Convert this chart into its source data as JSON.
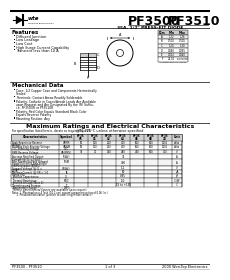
{
  "title1": "PF3500",
  "title2": "PF3510",
  "subtitle": "35A, 1/2\" PRESS-FIT DIODE",
  "bg_color": "#ffffff",
  "features_title": "Features",
  "features": [
    "Diffused Junction",
    "Low Leakage",
    "Low Cost",
    "High Surge Current Capability",
    "Transient less than 10 A"
  ],
  "mech_title": "Mechanical Data",
  "mech_items": [
    "Case: 1/2 Copper Case and Components Hermetically Sealed",
    "Terminals: Contact Areas Readily Solderable",
    "Polarity: Cathode in Cases/Anode Leads Are Available upon Request and Are Designated By the (R) Suffix, i.e. PF3500R or PF3510R",
    "Polarity: Red Color Equals Standard Black Color Equals Reverse Polarity",
    "Mounting Position: Any"
  ],
  "table_title": "Maximum Ratings and Electrical Characteristics",
  "table_note": "@TL=25°C unless otherwise specified",
  "page_footer": "PF3500 - PF3510",
  "page_num": "1 of 3",
  "footer_right": "2000 Won-Top Electronics",
  "dim_table": [
    [
      "Dim",
      "Min",
      "Max"
    ],
    [
      "A",
      "1.22",
      "1.26"
    ],
    [
      "B",
      "0.500",
      "0.505"
    ],
    [
      "C",
      "1.20",
      "1.30"
    ],
    [
      "D",
      "0.040",
      "0.055"
    ],
    [
      "E",
      "0.032",
      "0.040"
    ],
    [
      "F",
      "24.50",
      "as noted"
    ]
  ],
  "char_rows": [
    {
      "name": "Peak Repetitive Reverse Voltage",
      "sym": "VRRM",
      "unit": "Volts",
      "vals": [
        "50",
        "100",
        "200",
        "400",
        "600",
        "800",
        "1000"
      ],
      "span": false
    },
    {
      "name": "Working Peak Reverse Voltage / DC Blocking Voltage",
      "sym": "VRWM VDC",
      "unit": "Volts",
      "vals": [
        "50",
        "100",
        "200",
        "400",
        "600",
        "800",
        "1000"
      ],
      "span": false
    },
    {
      "name": "RMS Reverse Voltage",
      "sym": "VR(RMS)",
      "unit": "V",
      "vals": [
        "35",
        "70",
        "140",
        "280",
        "420",
        "560",
        "700"
      ],
      "span": false
    },
    {
      "name": "Average Rectified Output Current (@ TL = 150°C)",
      "sym": "IF(AV)",
      "unit": "A",
      "vals": [
        "",
        "",
        "",
        "35",
        "",
        "",
        ""
      ],
      "span": true
    },
    {
      "name": "Non-Repetitive Peak Forward Surge Current 8.3ms Single half sine-wave (JEDEC)",
      "sym": "IFSM",
      "unit": "A",
      "vals": [
        "",
        "",
        "",
        "400",
        "",
        "",
        ""
      ],
      "span": true
    },
    {
      "name": "Forward Voltage (@ IL = 200A)",
      "sym": "VF(AV)",
      "unit": "V",
      "vals": [
        "",
        "",
        "",
        "1.1",
        "",
        "",
        ""
      ],
      "span": true
    },
    {
      "name": "Reverse Current (@ VR = 1.0 Rated VR)",
      "sym": "IR",
      "unit": "μA",
      "vals": [
        "",
        "",
        "",
        "50",
        "",
        "",
        ""
      ],
      "span": true
    },
    {
      "name": "Junction Capacitance",
      "sym": "Cj",
      "unit": "pF",
      "vals": [
        "",
        "",
        "",
        "0.85",
        "",
        "",
        ""
      ],
      "span": true
    },
    {
      "name": "Thermal Resistance Junction-to-Case (Note 2)",
      "sym": "RθJC",
      "unit": "°C/W",
      "vals": [
        "",
        "",
        "",
        "1.0",
        "",
        "",
        ""
      ],
      "span": true
    },
    {
      "name": "Operating and Storage Temperature Range",
      "sym": "TJ, TSTG",
      "unit": "°C",
      "vals": [
        "",
        "",
        "",
        "-55 to +150",
        "",
        "",
        ""
      ],
      "span": true
    }
  ],
  "col_part_labels": [
    "PF3505",
    "PF3501",
    "PF3502",
    "PF3504",
    "PF3506",
    "PF3508",
    "PF3510"
  ]
}
